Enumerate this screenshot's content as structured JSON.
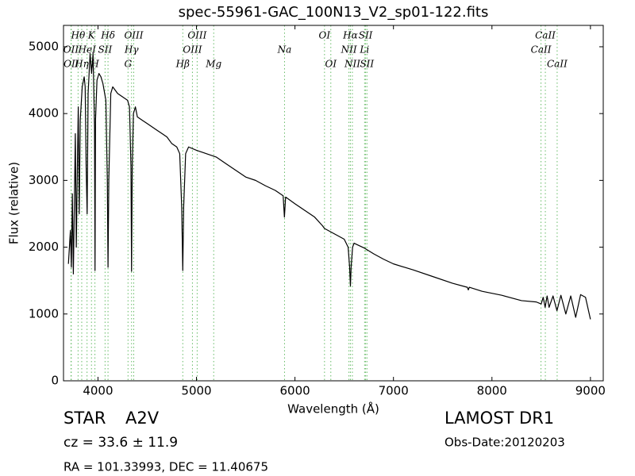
{
  "chart_data": {
    "type": "line",
    "title": "spec-55961-GAC_100N13_V2_sp01-122.fits",
    "xlabel": "Wavelength (Å)",
    "ylabel": "Flux (relative)",
    "xlim": [
      3650,
      9130
    ],
    "ylim": [
      0,
      5320
    ],
    "xticks": [
      4000,
      5000,
      6000,
      7000,
      8000,
      9000
    ],
    "yticks": [
      0,
      1000,
      2000,
      3000,
      4000,
      5000
    ],
    "color": "#000000",
    "line_marker_color": "#66bb66",
    "x": [
      3700,
      3720,
      3730,
      3740,
      3750,
      3760,
      3770,
      3780,
      3790,
      3800,
      3810,
      3820,
      3840,
      3860,
      3870,
      3880,
      3890,
      3900,
      3920,
      3935,
      3950,
      3965,
      3970,
      3975,
      3990,
      4010,
      4030,
      4050,
      4080,
      4095,
      4102,
      4110,
      4130,
      4150,
      4200,
      4250,
      4300,
      4320,
      4335,
      4341,
      4348,
      4360,
      4380,
      4400,
      4450,
      4500,
      4550,
      4600,
      4650,
      4700,
      4750,
      4800,
      4830,
      4850,
      4861,
      4870,
      4890,
      4920,
      5000,
      5100,
      5200,
      5300,
      5400,
      5500,
      5600,
      5700,
      5800,
      5880,
      5893,
      5905,
      6000,
      6100,
      6200,
      6280,
      6300,
      6400,
      6500,
      6540,
      6555,
      6563,
      6570,
      6585,
      6600,
      6700,
      6800,
      6900,
      7000,
      7200,
      7400,
      7600,
      7750,
      7760,
      7770,
      7900,
      8100,
      8300,
      8450,
      8500,
      8520,
      8540,
      8560,
      8580,
      8620,
      8660,
      8700,
      8750,
      8800,
      8850,
      8900,
      8950,
      9000
    ],
    "values": [
      1750,
      2250,
      1700,
      2800,
      1600,
      2600,
      3700,
      2000,
      3100,
      4100,
      2500,
      3900,
      4400,
      4550,
      4400,
      3200,
      2500,
      4300,
      4900,
      4600,
      4900,
      3800,
      1650,
      3900,
      4500,
      4600,
      4550,
      4450,
      4200,
      3000,
      1700,
      3000,
      4300,
      4400,
      4300,
      4250,
      4200,
      4100,
      3200,
      1640,
      3200,
      4000,
      4100,
      3950,
      3900,
      3850,
      3800,
      3750,
      3700,
      3650,
      3550,
      3500,
      3400,
      2600,
      1650,
      2600,
      3400,
      3500,
      3450,
      3400,
      3350,
      3250,
      3150,
      3050,
      3000,
      2920,
      2850,
      2770,
      2450,
      2750,
      2650,
      2550,
      2450,
      2320,
      2280,
      2200,
      2120,
      2000,
      1700,
      1420,
      1700,
      2000,
      2060,
      1990,
      1900,
      1820,
      1750,
      1660,
      1560,
      1460,
      1400,
      1360,
      1400,
      1340,
      1280,
      1200,
      1180,
      1150,
      1250,
      1100,
      1270,
      1100,
      1270,
      1050,
      1280,
      1000,
      1270,
      950,
      1290,
      1250,
      920
    ],
    "spectral_lines": [
      {
        "label": "OII",
        "wavelength": 3726
      },
      {
        "label": "OII",
        "wavelength": 3729
      },
      {
        "label": "Hθ",
        "wavelength": 3798
      },
      {
        "label": "Hη",
        "wavelength": 3835
      },
      {
        "label": "HeI",
        "wavelength": 3889
      },
      {
        "label": "K",
        "wavelength": 3934
      },
      {
        "label": "H",
        "wavelength": 3969
      },
      {
        "label": "SII",
        "wavelength": 4072
      },
      {
        "label": "Hδ",
        "wavelength": 4102
      },
      {
        "label": "G",
        "wavelength": 4305
      },
      {
        "label": "Hγ",
        "wavelength": 4341
      },
      {
        "label": "OIII",
        "wavelength": 4363
      },
      {
        "label": "Hβ",
        "wavelength": 4861
      },
      {
        "label": "OIII",
        "wavelength": 4959
      },
      {
        "label": "OIII",
        "wavelength": 5007
      },
      {
        "label": "Mg",
        "wavelength": 5175
      },
      {
        "label": "Na",
        "wavelength": 5894
      },
      {
        "label": "OI",
        "wavelength": 6300
      },
      {
        "label": "OI",
        "wavelength": 6364
      },
      {
        "label": "NII",
        "wavelength": 6548
      },
      {
        "label": "Hα",
        "wavelength": 6563
      },
      {
        "label": "NII",
        "wavelength": 6583
      },
      {
        "label": "Li",
        "wavelength": 6707
      },
      {
        "label": "SII",
        "wavelength": 6717
      },
      {
        "label": "SII",
        "wavelength": 6731
      },
      {
        "label": "CaII",
        "wavelength": 8498
      },
      {
        "label": "CaII",
        "wavelength": 8542
      },
      {
        "label": "CaII",
        "wavelength": 8662
      }
    ]
  },
  "info": {
    "object_class": "STAR",
    "subclass": "A2V",
    "redshift": "cz = 33.6  ± 11.9",
    "coordinates": "RA = 101.33993, DEC = 11.40675",
    "survey": "LAMOST DR1",
    "obs_date": "Obs-Date:20120203"
  }
}
